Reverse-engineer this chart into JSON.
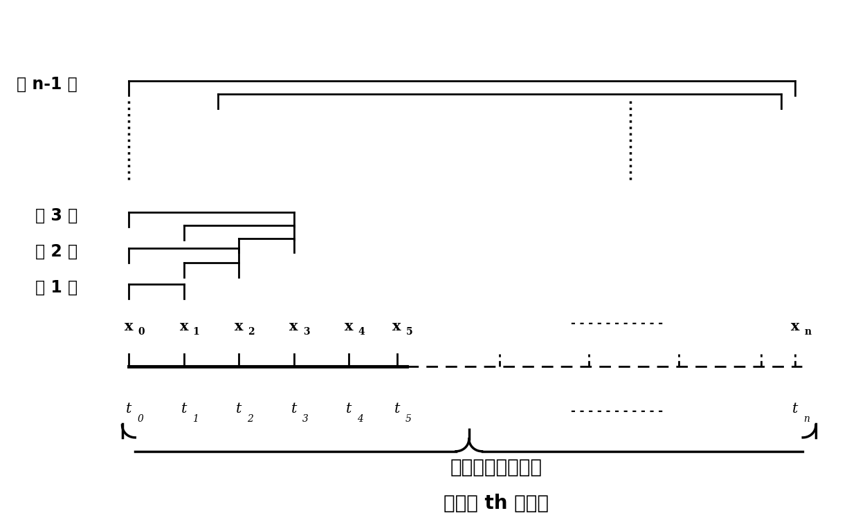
{
  "bg_color": "#ffffff",
  "text_color": "#000000",
  "fig_width": 12.4,
  "fig_height": 7.42,
  "title_line1": "数据彼此间距离小",
  "title_line2": "于阈値 th 的范围",
  "label_n1": "第 n-1 回",
  "label_3": "第 3 回",
  "label_2": "第 2 回",
  "label_1": "第 1 回",
  "font_size_title": 20,
  "font_size_round": 17,
  "fs_main": 15,
  "fs_sub": 10
}
